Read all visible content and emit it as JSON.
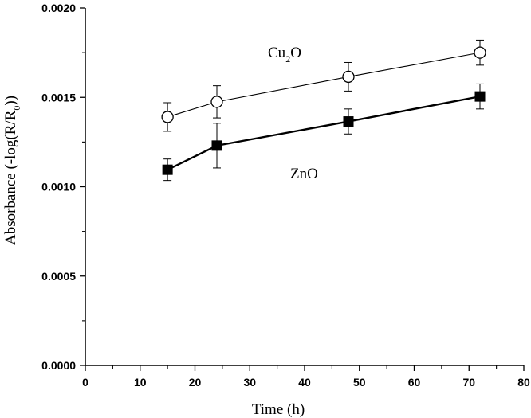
{
  "chart_data": {
    "type": "line",
    "xlabel": "Time (h)",
    "ylabel": {
      "main": "Absorbance (-log(R/R",
      "sub": "0",
      "tail": "))"
    },
    "xlim": [
      0,
      80
    ],
    "ylim": [
      0,
      0.002
    ],
    "x_ticks": [
      0,
      10,
      20,
      30,
      40,
      50,
      60,
      70,
      80
    ],
    "y_ticks": [
      "0.0000",
      "0.0005",
      "0.0010",
      "0.0015",
      "0.0020"
    ],
    "y_tick_values": [
      0,
      0.0005,
      0.001,
      0.0015,
      0.002
    ],
    "series": [
      {
        "name": "Cu2O",
        "label_main": "Cu",
        "label_sub": "2",
        "label_tail": "O",
        "marker": "open-circle",
        "x": [
          15,
          24,
          48,
          72
        ],
        "y": [
          0.00139,
          0.001475,
          0.001615,
          0.00175
        ],
        "err": [
          8e-05,
          9e-05,
          8e-05,
          7e-05
        ]
      },
      {
        "name": "ZnO",
        "label_main": "ZnO",
        "marker": "filled-square",
        "x": [
          15,
          24,
          48,
          72
        ],
        "y": [
          0.001095,
          0.00123,
          0.001365,
          0.001505
        ],
        "err": [
          6e-05,
          0.000125,
          7e-05,
          7e-05
        ]
      }
    ]
  }
}
